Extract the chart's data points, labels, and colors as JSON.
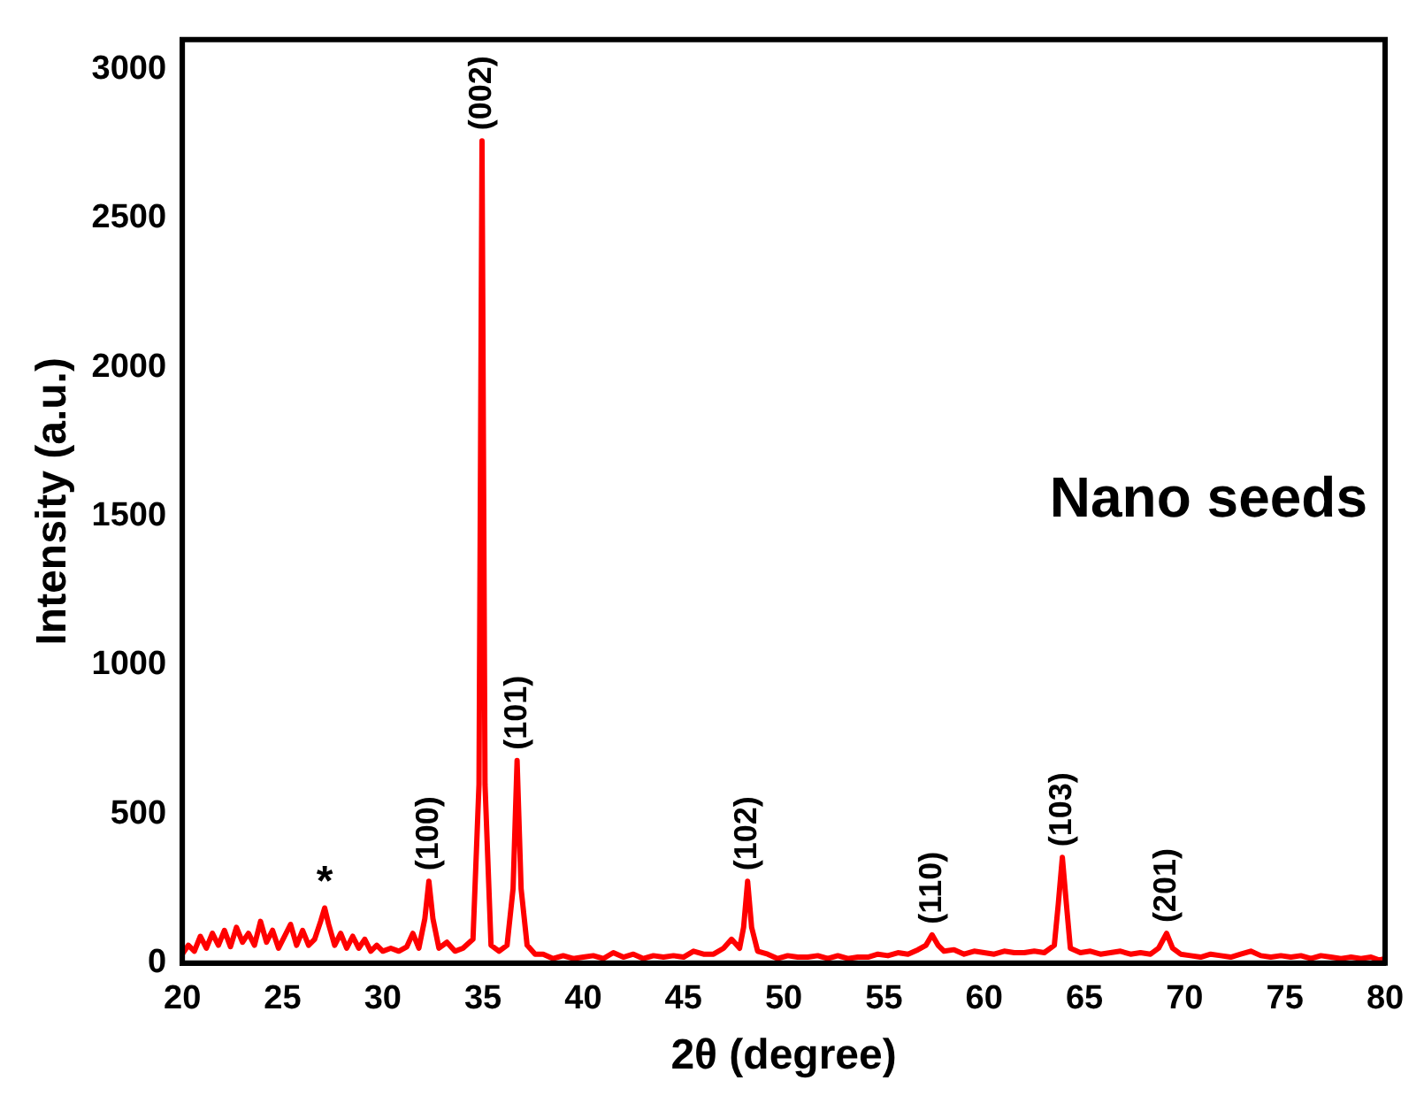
{
  "chart_data": {
    "type": "line",
    "xlabel": "2θ (degree)",
    "ylabel": "Intensity (a.u.)",
    "xlim": [
      20,
      80
    ],
    "xticks": [
      20,
      25,
      30,
      35,
      40,
      45,
      50,
      55,
      60,
      65,
      70,
      75,
      80
    ],
    "ylim": [
      0,
      3100
    ],
    "yticks": [
      0,
      500,
      1000,
      1500,
      2000,
      2500,
      3000
    ],
    "grid": false,
    "legend": false,
    "marker": "none",
    "line_style": "solid",
    "series": [
      {
        "color": "#ff0000",
        "x": [
          20.0,
          20.3,
          20.6,
          20.9,
          21.2,
          21.5,
          21.8,
          22.1,
          22.4,
          22.7,
          23.0,
          23.3,
          23.6,
          23.9,
          24.2,
          24.5,
          24.8,
          25.1,
          25.4,
          25.7,
          26.0,
          26.3,
          26.6,
          26.9,
          27.1,
          27.3,
          27.6,
          27.9,
          28.2,
          28.5,
          28.8,
          29.1,
          29.4,
          29.7,
          30.0,
          30.4,
          30.8,
          31.2,
          31.5,
          31.8,
          32.1,
          32.3,
          32.5,
          32.8,
          33.2,
          33.6,
          34.0,
          34.5,
          34.8,
          34.95,
          35.1,
          35.4,
          35.8,
          36.2,
          36.5,
          36.7,
          36.9,
          37.2,
          37.6,
          38.0,
          38.5,
          39.0,
          39.5,
          40.0,
          40.5,
          41.0,
          41.5,
          42.0,
          42.5,
          43.0,
          43.5,
          44.0,
          44.5,
          45.0,
          45.5,
          46.0,
          46.5,
          47.0,
          47.4,
          47.8,
          48.0,
          48.2,
          48.4,
          48.7,
          49.2,
          49.7,
          50.2,
          50.7,
          51.2,
          51.7,
          52.2,
          52.7,
          53.2,
          53.7,
          54.2,
          54.7,
          55.2,
          55.7,
          56.2,
          56.7,
          57.1,
          57.4,
          57.7,
          58.0,
          58.5,
          59.0,
          59.5,
          60.0,
          60.5,
          61.0,
          61.5,
          62.0,
          62.5,
          63.0,
          63.5,
          63.7,
          63.9,
          64.1,
          64.3,
          64.8,
          65.3,
          65.8,
          66.3,
          66.8,
          67.3,
          67.8,
          68.3,
          68.7,
          69.1,
          69.4,
          69.8,
          70.3,
          70.8,
          71.3,
          71.8,
          72.3,
          72.8,
          73.3,
          73.8,
          74.3,
          74.8,
          75.3,
          75.8,
          76.3,
          76.8,
          77.3,
          77.8,
          78.3,
          78.8,
          79.3,
          79.7,
          80.0
        ],
        "values": [
          30,
          60,
          40,
          90,
          50,
          100,
          60,
          110,
          55,
          120,
          70,
          100,
          60,
          140,
          70,
          110,
          50,
          90,
          130,
          60,
          110,
          60,
          80,
          140,
          185,
          130,
          60,
          100,
          50,
          90,
          50,
          80,
          40,
          60,
          40,
          50,
          40,
          55,
          100,
          50,
          150,
          275,
          150,
          50,
          70,
          40,
          50,
          80,
          600,
          2760,
          600,
          60,
          40,
          60,
          250,
          680,
          250,
          60,
          30,
          30,
          15,
          25,
          15,
          20,
          25,
          15,
          35,
          20,
          30,
          15,
          25,
          20,
          25,
          20,
          40,
          30,
          30,
          50,
          80,
          50,
          120,
          275,
          120,
          40,
          30,
          15,
          25,
          20,
          20,
          25,
          15,
          25,
          15,
          20,
          20,
          30,
          25,
          35,
          30,
          45,
          60,
          95,
          60,
          40,
          45,
          30,
          40,
          35,
          30,
          40,
          35,
          35,
          40,
          35,
          60,
          200,
          355,
          200,
          50,
          35,
          40,
          30,
          35,
          40,
          30,
          35,
          30,
          50,
          100,
          50,
          30,
          25,
          20,
          30,
          25,
          20,
          30,
          40,
          25,
          20,
          25,
          20,
          25,
          15,
          25,
          20,
          15,
          20,
          15,
          20,
          10,
          15
        ]
      }
    ],
    "annotations": [
      {
        "text": "*",
        "x": 27.1,
        "y": 185
      },
      {
        "text": "(100)",
        "x": 32.3,
        "y": 275
      },
      {
        "text": "(002)",
        "x": 34.95,
        "y": 2760
      },
      {
        "text": "(101)",
        "x": 36.7,
        "y": 680
      },
      {
        "text": "(102)",
        "x": 48.2,
        "y": 275
      },
      {
        "text": "(110)",
        "x": 57.4,
        "y": 95
      },
      {
        "text": "(103)",
        "x": 63.9,
        "y": 355
      },
      {
        "text": "(201)",
        "x": 69.1,
        "y": 100
      },
      "Nano seeds"
    ]
  }
}
